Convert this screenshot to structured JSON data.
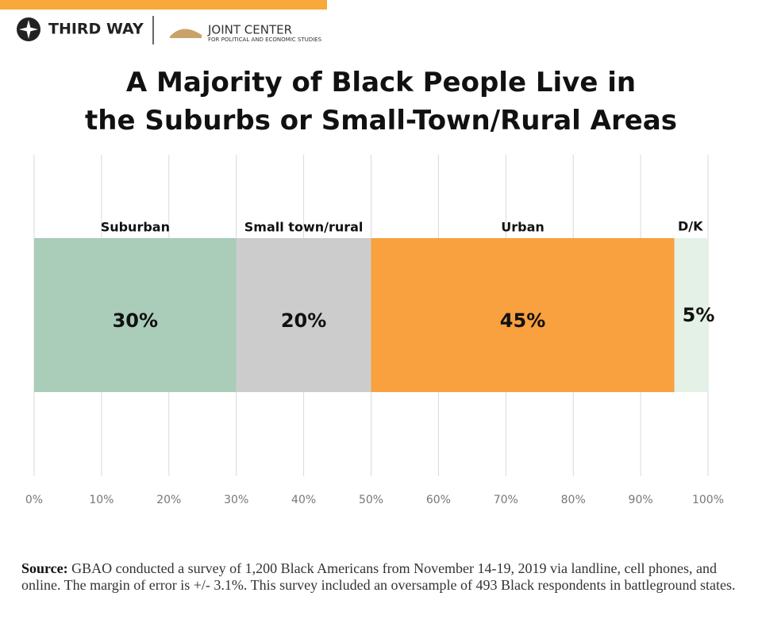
{
  "header": {
    "brand": "THIRD WAY",
    "partner": "JOINT CENTER",
    "partner_sub": "FOR POLITICAL AND ECONOMIC STUDIES"
  },
  "chart_data": {
    "type": "stacked-bar-100",
    "title": "A Majority of Black People Live in\nthe Suburbs or Small-Town/Rural Areas",
    "series": [
      {
        "name": "Suburban",
        "color": "#a9cdb9",
        "values": [
          30
        ],
        "value_labels": [
          "30%"
        ]
      },
      {
        "name": "Small town/rural",
        "color": "#cccccc",
        "values": [
          20
        ],
        "value_labels": [
          "20%"
        ]
      },
      {
        "name": "Urban",
        "color": "#f9a03f",
        "values": [
          45
        ],
        "value_labels": [
          "45%"
        ]
      },
      {
        "name": "D/K",
        "color": "#e4f1e7",
        "values": [
          5
        ],
        "value_labels": [
          "5%"
        ]
      }
    ],
    "xlim": [
      0,
      100
    ],
    "xticks": [
      {
        "value": 0,
        "label": "0%"
      },
      {
        "value": 10,
        "label": "10%"
      },
      {
        "value": 20,
        "label": "20%"
      },
      {
        "value": 30,
        "label": "30%"
      },
      {
        "value": 40,
        "label": "40%"
      },
      {
        "value": 50,
        "label": "50%"
      },
      {
        "value": 60,
        "label": "60%"
      },
      {
        "value": 70,
        "label": "70%"
      },
      {
        "value": 80,
        "label": "80%"
      },
      {
        "value": 90,
        "label": "90%"
      },
      {
        "value": 100,
        "label": "100%"
      }
    ],
    "grid": true,
    "source_label": "Source:",
    "source": "GBAO conducted a survey of 1,200 Black Americans from November 14-19, 2019 via landline, cell phones, and online. The margin of error is +/- 3.1%. This survey included an oversample of 493 Black respondents in battleground states."
  }
}
